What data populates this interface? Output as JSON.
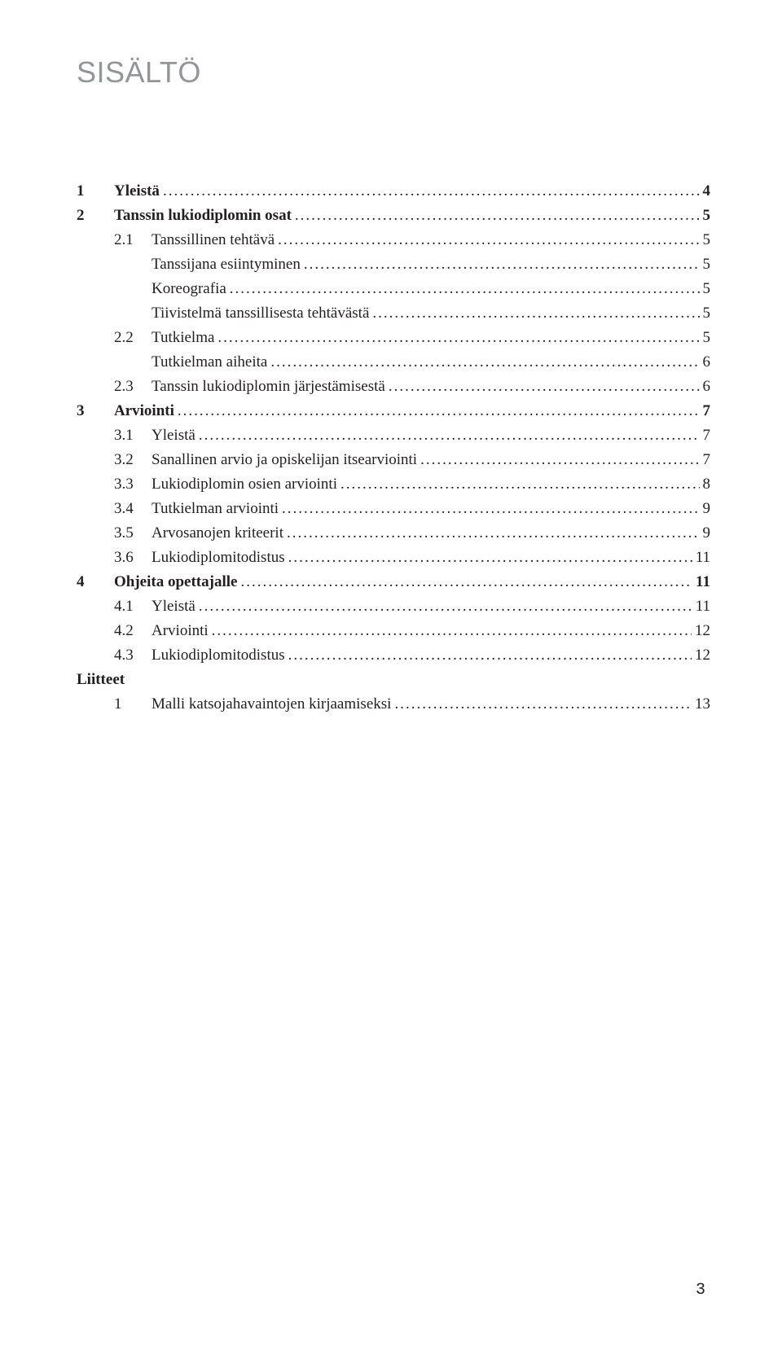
{
  "heading": "SISÄLTÖ",
  "toc": [
    {
      "level": 0,
      "num": "1",
      "text": "Yleistä",
      "page": "4",
      "bold": true
    },
    {
      "level": 0,
      "num": "2",
      "text": "Tanssin lukiodiplomin osat",
      "page": "5",
      "bold": true
    },
    {
      "level": 1,
      "num": "2.1",
      "text": "Tanssillinen tehtävä",
      "page": "5",
      "bold": false
    },
    {
      "level": 1,
      "num": "",
      "text": "Tanssijana esiintyminen",
      "page": "5",
      "bold": false
    },
    {
      "level": 1,
      "num": "",
      "text": "Koreografia",
      "page": "5",
      "bold": false
    },
    {
      "level": 1,
      "num": "",
      "text": "Tiivistelmä tanssillisesta tehtävästä",
      "page": "5",
      "bold": false
    },
    {
      "level": 1,
      "num": "2.2",
      "text": "Tutkielma",
      "page": "5",
      "bold": false
    },
    {
      "level": 1,
      "num": "",
      "text": "Tutkielman aiheita",
      "page": "6",
      "bold": false
    },
    {
      "level": 1,
      "num": "2.3",
      "text": "Tanssin lukiodiplomin järjestämisestä",
      "page": "6",
      "bold": false
    },
    {
      "level": 0,
      "num": "3",
      "text": "Arviointi",
      "page": "7",
      "bold": true
    },
    {
      "level": 1,
      "num": "3.1",
      "text": "Yleistä",
      "page": "7",
      "bold": false
    },
    {
      "level": 1,
      "num": "3.2",
      "text": "Sanallinen arvio ja opiskelijan itsearviointi",
      "page": "7",
      "bold": false
    },
    {
      "level": 1,
      "num": "3.3",
      "text": "Lukiodiplomin osien arviointi",
      "page": "8",
      "bold": false
    },
    {
      "level": 1,
      "num": "3.4",
      "text": "Tutkielman arviointi",
      "page": "9",
      "bold": false
    },
    {
      "level": 1,
      "num": "3.5",
      "text": "Arvosanojen kriteerit",
      "page": "9",
      "bold": false
    },
    {
      "level": 1,
      "num": "3.6",
      "text": "Lukiodiplomitodistus",
      "page": "11",
      "bold": false
    },
    {
      "level": 0,
      "num": "4",
      "text": "Ohjeita opettajalle",
      "page": "11",
      "bold": true
    },
    {
      "level": 1,
      "num": "4.1",
      "text": "Yleistä",
      "page": "11",
      "bold": false
    },
    {
      "level": 1,
      "num": "4.2",
      "text": "Arviointi",
      "page": "12",
      "bold": false
    },
    {
      "level": 1,
      "num": "4.3",
      "text": "Lukiodiplomitodistus",
      "page": "12",
      "bold": false
    }
  ],
  "appendix_label": "Liitteet",
  "appendix": [
    {
      "num": "1",
      "text": "Malli katsojahavaintojen kirjaamiseksi",
      "page": "13"
    }
  ],
  "page_number": "3",
  "colors": {
    "heading": "#939598",
    "text": "#231f20",
    "background": "#ffffff"
  },
  "fonts": {
    "heading_family": "Arial Narrow",
    "heading_size_pt": 27,
    "body_family": "Georgia",
    "body_size_pt": 14
  }
}
